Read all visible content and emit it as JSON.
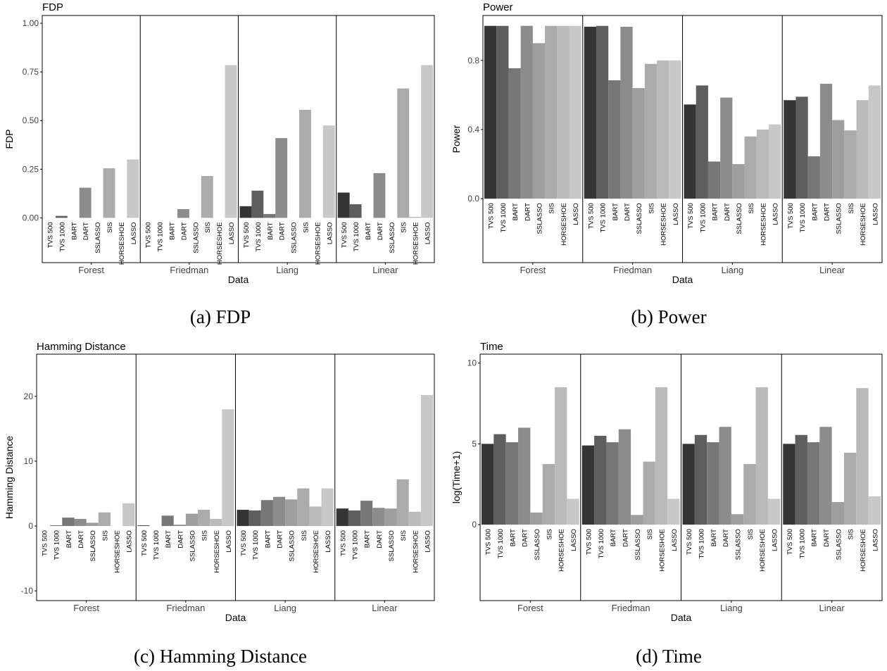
{
  "figure": {
    "captions": [
      "(a) FDP",
      "(b) Power",
      "(c) Hamming Distance",
      "(d) Time"
    ]
  },
  "chart_data": [
    {
      "type": "bar",
      "title": "FDP",
      "xlabel": "Data",
      "ylabel": "FDP",
      "ylim": [
        -0.23,
        1.04
      ],
      "yticks": [
        "0.00",
        "0.25",
        "0.50",
        "0.75",
        "1.00"
      ],
      "ytick_values": [
        0,
        0.25,
        0.5,
        0.75,
        1.0
      ],
      "facets": [
        "Forest",
        "Friedman",
        "Liang",
        "Linear"
      ],
      "categories": [
        "TVS 500",
        "TVS 1000",
        "BART",
        "DART",
        "SSLASSO",
        "SIS",
        "HORSESHOE",
        "LASSO"
      ],
      "values": [
        [
          0.0,
          0.01,
          0.0,
          0.155,
          0.0,
          0.255,
          0.0,
          0.3
        ],
        [
          0.0,
          0.0,
          0.0,
          0.045,
          0.0,
          0.215,
          0.0,
          0.785
        ],
        [
          0.06,
          0.14,
          0.02,
          0.41,
          0.0,
          0.555,
          0.0,
          0.475
        ],
        [
          0.13,
          0.07,
          0.0,
          0.23,
          0.0,
          0.665,
          0.005,
          0.785
        ]
      ],
      "grid": false,
      "legend": "none"
    },
    {
      "type": "bar",
      "title": "Power",
      "xlabel": "Data",
      "ylabel": "Power",
      "ylim": [
        -0.37,
        1.06
      ],
      "yticks": [
        "0.0",
        "0.4",
        "0.8"
      ],
      "ytick_values": [
        0,
        0.4,
        0.8
      ],
      "facets": [
        "Forest",
        "Friedman",
        "Liang",
        "Linear"
      ],
      "categories": [
        "TVS 500",
        "TVS 1000",
        "BART",
        "DART",
        "SSLASSO",
        "SIS",
        "HORSESHOE",
        "LASSO"
      ],
      "values": [
        [
          1.0,
          1.0,
          0.755,
          1.0,
          0.9,
          1.0,
          1.0,
          1.0
        ],
        [
          0.995,
          1.0,
          0.685,
          0.995,
          0.64,
          0.78,
          0.8,
          0.8
        ],
        [
          0.545,
          0.655,
          0.215,
          0.585,
          0.2,
          0.36,
          0.4,
          0.43
        ],
        [
          0.57,
          0.59,
          0.245,
          0.665,
          0.455,
          0.395,
          0.57,
          0.655
        ]
      ],
      "grid": false,
      "legend": "none"
    },
    {
      "type": "bar",
      "title": "Hamming Distance",
      "xlabel": "Data",
      "ylabel": "Hamming Distance",
      "ylim": [
        -11.5,
        26.5
      ],
      "yticks": [
        "-10",
        "0",
        "10",
        "20"
      ],
      "ytick_values": [
        -10,
        0,
        10,
        20
      ],
      "facets": [
        "Forest",
        "Friedman",
        "Liang",
        "Linear"
      ],
      "categories": [
        "TVS 500",
        "TVS 1000",
        "BART",
        "DART",
        "SSLASSO",
        "SIS",
        "HORSESHOE",
        "LASSO"
      ],
      "values": [
        [
          0.0,
          0.1,
          1.3,
          1.1,
          0.5,
          2.1,
          0.0,
          3.5
        ],
        [
          0.1,
          0.0,
          1.6,
          0.2,
          1.9,
          2.5,
          1.1,
          18.0
        ],
        [
          2.5,
          2.4,
          4.0,
          4.5,
          4.1,
          5.8,
          3.0,
          5.8
        ],
        [
          2.7,
          2.4,
          3.9,
          2.8,
          2.7,
          7.2,
          2.2,
          20.2
        ]
      ],
      "grid": false,
      "legend": "none"
    },
    {
      "type": "bar",
      "title": "Time",
      "xlabel": "Data",
      "ylabel": "log(Time+1)",
      "ylim": [
        -4.7,
        10.55
      ],
      "yticks": [
        "0",
        "5",
        "10"
      ],
      "ytick_values": [
        0,
        5,
        10
      ],
      "facets": [
        "Forest",
        "Friedman",
        "Liang",
        "Linear"
      ],
      "categories": [
        "TVS 500",
        "TVS 1000",
        "BART",
        "DART",
        "SSLASSO",
        "SIS",
        "HORSESHOE",
        "LASSO"
      ],
      "values": [
        [
          5.0,
          5.6,
          5.1,
          6.0,
          0.75,
          3.75,
          8.5,
          1.6
        ],
        [
          4.9,
          5.5,
          5.1,
          5.9,
          0.6,
          3.9,
          8.5,
          1.6
        ],
        [
          5.0,
          5.55,
          5.1,
          6.05,
          0.65,
          3.75,
          8.5,
          1.6
        ],
        [
          5.0,
          5.55,
          5.1,
          6.05,
          1.4,
          4.45,
          8.45,
          1.75
        ]
      ],
      "grid": false,
      "legend": "none"
    }
  ],
  "colors": {
    "bars": [
      "#353535",
      "#5e5e5e",
      "#777777",
      "#8c8c8c",
      "#9e9e9e",
      "#ababab",
      "#bababa",
      "#c8c8c8"
    ],
    "axis": "#000000",
    "text": "#000000",
    "tick_label": "#444444"
  }
}
